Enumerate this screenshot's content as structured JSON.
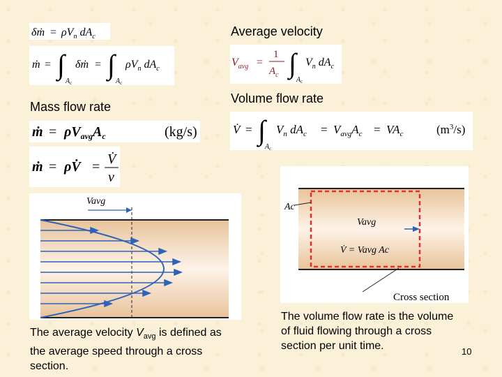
{
  "labels": {
    "average_velocity": "Average velocity",
    "volume_flow_rate": "Volume flow rate",
    "mass_flow_rate": "Mass flow rate"
  },
  "equations": {
    "eq1": {
      "lhs": "δṁ",
      "rhs": "ρVn dAc"
    },
    "eq2": {
      "lhs": "ṁ",
      "mid": "∫ δṁ",
      "rhs": "∫ ρVn dAc",
      "limit": "Ac"
    },
    "eq3": {
      "lhs": "ṁ",
      "rhs": "ρVavg Ac",
      "unit": "(kg/s)"
    },
    "eq4": {
      "lhs": "ṁ",
      "mid": "ρV̇",
      "num": "V̇",
      "den": "v"
    },
    "eq5": {
      "lhs": "Vavg",
      "num": "1",
      "den": "Ac",
      "rhs": "Vn dAc",
      "limit": "Ac"
    },
    "eq6": {
      "lhs": "V̇",
      "rhs": "Vn dAc = Vavg Ac = VAc",
      "unit": "(m³/s)",
      "limit": "Ac"
    }
  },
  "figure_left": {
    "top_label": "Vavg"
  },
  "figure_right": {
    "ac_label": "Ac",
    "vavg_label": "Vavg",
    "eq_label": "V̇ = Vavg Ac",
    "caption": "Cross section"
  },
  "paragraphs": {
    "left_pre": "The average velocity ",
    "left_var": "V",
    "left_sub": "avg",
    "left_post": " is defined as the average speed through a cross section.",
    "right": "The volume flow rate is the volume of fluid flowing through a cross section per unit time."
  },
  "slide_number": "10",
  "colors": {
    "arrow_blue": "#2f63b8",
    "red_box": "#e03030",
    "pipe_light": "#fdf1e6",
    "pipe_dark": "#e9c39c"
  }
}
